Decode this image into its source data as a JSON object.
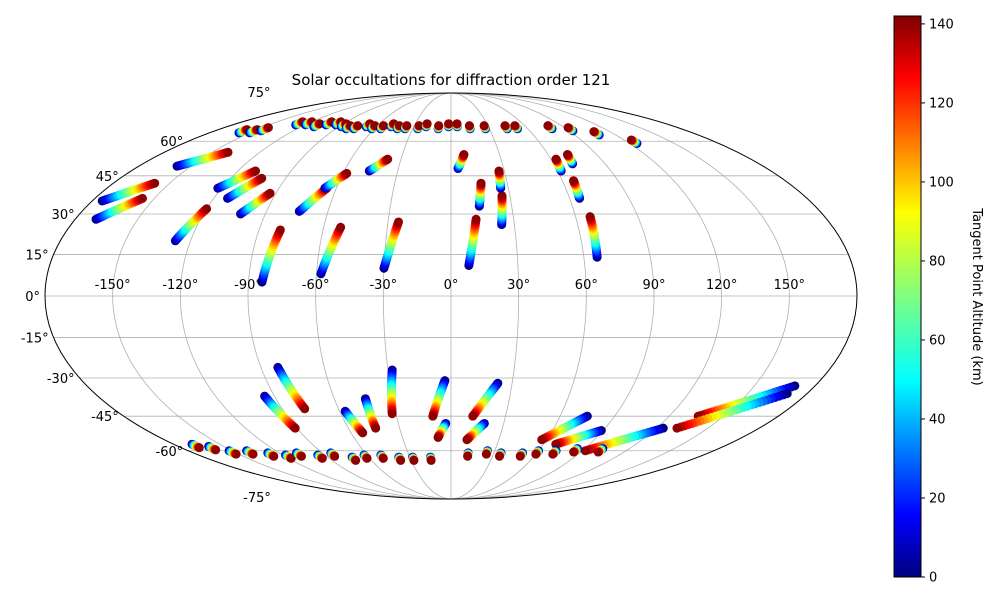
{
  "chart_data": {
    "type": "scatter",
    "projection": "mollweide",
    "title": "Solar occultations for diffraction order 121",
    "xlabel": "",
    "ylabel": "",
    "grid": true,
    "lon_ticks": [
      {
        "value": -150,
        "label": "-150°"
      },
      {
        "value": -120,
        "label": "-120°"
      },
      {
        "value": -90,
        "label": "-90°"
      },
      {
        "value": -60,
        "label": "-60°"
      },
      {
        "value": -30,
        "label": "-30°"
      },
      {
        "value": 0,
        "label": "0°"
      },
      {
        "value": 30,
        "label": "30°"
      },
      {
        "value": 60,
        "label": "60°"
      },
      {
        "value": 90,
        "label": "90°"
      },
      {
        "value": 120,
        "label": "120°"
      },
      {
        "value": 150,
        "label": "150°"
      }
    ],
    "lat_ticks": [
      {
        "value": 75,
        "label": "75°"
      },
      {
        "value": 60,
        "label": "60°"
      },
      {
        "value": 45,
        "label": "45°"
      },
      {
        "value": 30,
        "label": "30°"
      },
      {
        "value": 15,
        "label": "15°"
      },
      {
        "value": 0,
        "label": "0°"
      },
      {
        "value": -15,
        "label": "-15°"
      },
      {
        "value": -30,
        "label": "-30°"
      },
      {
        "value": -45,
        "label": "-45°"
      },
      {
        "value": -60,
        "label": "-60°"
      },
      {
        "value": -75,
        "label": "-75°"
      }
    ],
    "colorbar": {
      "label": "Tangent Point Altitude (km)",
      "range": [
        0,
        142
      ],
      "ticks": [
        {
          "value": 0,
          "label": "0"
        },
        {
          "value": 20,
          "label": "20"
        },
        {
          "value": 40,
          "label": "40"
        },
        {
          "value": 60,
          "label": "60"
        },
        {
          "value": 80,
          "label": "80"
        },
        {
          "value": 100,
          "label": "100"
        },
        {
          "value": 120,
          "label": "120"
        },
        {
          "value": 140,
          "label": "140"
        }
      ]
    },
    "altitude_range_km": [
      0,
      140
    ],
    "occultations": [
      {
        "lon_start": -175,
        "lat_start": 35,
        "lon_end": -158,
        "lat_end": 42
      },
      {
        "lon_start": -170,
        "lat_start": 28,
        "lon_end": -156,
        "lat_end": 36
      },
      {
        "lon_start": -158,
        "lat_start": 49,
        "lon_end": -140,
        "lat_end": 55
      },
      {
        "lon_start": -127,
        "lat_start": 20,
        "lon_end": -120,
        "lat_end": 32
      },
      {
        "lon_start": -122,
        "lat_start": 40,
        "lon_end": -110,
        "lat_end": 47
      },
      {
        "lon_start": -113,
        "lat_start": 36,
        "lon_end": -103,
        "lat_end": 44
      },
      {
        "lon_start": -102,
        "lat_start": 30,
        "lon_end": -93,
        "lat_end": 38
      },
      {
        "lon_start": -84,
        "lat_start": 5,
        "lon_end": -80,
        "lat_end": 24
      },
      {
        "lon_start": -74,
        "lat_start": 31,
        "lon_end": -65,
        "lat_end": 40
      },
      {
        "lon_start": -66,
        "lat_start": 40,
        "lon_end": -58,
        "lat_end": 46
      },
      {
        "lon_start": -58,
        "lat_start": 8,
        "lon_end": -52,
        "lat_end": 25
      },
      {
        "lon_start": -46,
        "lat_start": 47,
        "lon_end": -38,
        "lat_end": 52
      },
      {
        "lon_start": -30,
        "lat_start": 10,
        "lon_end": -25,
        "lat_end": 27
      },
      {
        "lon_start": 8,
        "lat_start": 11,
        "lon_end": 12,
        "lat_end": 28
      },
      {
        "lon_start": 14,
        "lat_start": 33,
        "lon_end": 16,
        "lat_end": 42
      },
      {
        "lon_start": 4,
        "lat_start": 48,
        "lon_end": 8,
        "lat_end": 54
      },
      {
        "lon_start": 24,
        "lat_start": 26,
        "lon_end": 26,
        "lat_end": 37
      },
      {
        "lon_start": 26,
        "lat_start": 40,
        "lon_end": 27,
        "lat_end": 47
      },
      {
        "lon_start": 62,
        "lat_start": 47,
        "lon_end": 63,
        "lat_end": 52
      },
      {
        "lon_start": 65,
        "lat_start": 36,
        "lon_end": 66,
        "lat_end": 43
      },
      {
        "lon_start": 66,
        "lat_start": 14,
        "lon_end": 67,
        "lat_end": 29
      },
      {
        "lon_start": 71,
        "lat_start": 50,
        "lon_end": 72,
        "lat_end": 54
      },
      {
        "lon_start": -82,
        "lat_start": -26,
        "lon_end": -78,
        "lat_end": -42
      },
      {
        "lon_start": -95,
        "lat_start": -37,
        "lon_end": -91,
        "lat_end": -50
      },
      {
        "lon_start": -57,
        "lat_start": -43,
        "lon_end": -53,
        "lat_end": -52
      },
      {
        "lon_start": -44,
        "lat_start": -38,
        "lon_end": -44,
        "lat_end": -50
      },
      {
        "lon_start": -28,
        "lat_start": -27,
        "lon_end": -32,
        "lat_end": -44
      },
      {
        "lon_start": -3,
        "lat_start": -31,
        "lon_end": -10,
        "lat_end": -45
      },
      {
        "lon_start": -3,
        "lat_start": -48,
        "lon_end": -8,
        "lat_end": -54
      },
      {
        "lon_start": 23,
        "lat_start": -32,
        "lon_end": 12,
        "lat_end": -45
      },
      {
        "lon_start": 19,
        "lat_start": -48,
        "lon_end": 10,
        "lat_end": -55
      },
      {
        "lon_start": 75,
        "lat_start": -45,
        "lon_end": 57,
        "lat_end": -55
      },
      {
        "lon_start": 89,
        "lat_start": -51,
        "lon_end": 68,
        "lat_end": -57
      },
      {
        "lon_start": 124,
        "lat_start": -50,
        "lon_end": 92,
        "lat_end": -60
      },
      {
        "lon_start": 170,
        "lat_start": -33,
        "lon_end": 136,
        "lat_end": -45
      },
      {
        "lon_start": 170,
        "lat_start": -36,
        "lon_end": 132,
        "lat_end": -50
      }
    ],
    "near_pole_points": [
      {
        "lon": -158,
        "lat": 64
      },
      {
        "lon": -150,
        "lat": 64
      },
      {
        "lon": -145,
        "lat": 65
      },
      {
        "lon": -128,
        "lat": 68
      },
      {
        "lon": -120,
        "lat": 68
      },
      {
        "lon": -110,
        "lat": 67
      },
      {
        "lon": -103,
        "lat": 68
      },
      {
        "lon": -95,
        "lat": 68
      },
      {
        "lon": -88,
        "lat": 67
      },
      {
        "lon": -82,
        "lat": 66
      },
      {
        "lon": -76,
        "lat": 66
      },
      {
        "lon": -68,
        "lat": 67
      },
      {
        "lon": -62,
        "lat": 66
      },
      {
        "lon": -55,
        "lat": 66
      },
      {
        "lon": -48,
        "lat": 67
      },
      {
        "lon": -42,
        "lat": 66
      },
      {
        "lon": -36,
        "lat": 66
      },
      {
        "lon": -26,
        "lat": 66
      },
      {
        "lon": -20,
        "lat": 67
      },
      {
        "lon": -10,
        "lat": 66
      },
      {
        "lon": -2,
        "lat": 67
      },
      {
        "lon": 5,
        "lat": 67
      },
      {
        "lon": 15,
        "lat": 66
      },
      {
        "lon": 27,
        "lat": 66
      },
      {
        "lon": 44,
        "lat": 66
      },
      {
        "lon": 52,
        "lat": 66
      },
      {
        "lon": 79,
        "lat": 66
      },
      {
        "lon": 93,
        "lat": 65
      },
      {
        "lon": 108,
        "lat": 63
      },
      {
        "lon": 125,
        "lat": 59
      },
      {
        "lon": -168,
        "lat": -57
      },
      {
        "lon": -160,
        "lat": -58
      },
      {
        "lon": -152,
        "lat": -60
      },
      {
        "lon": -140,
        "lat": -60
      },
      {
        "lon": -128,
        "lat": -61
      },
      {
        "lon": -118,
        "lat": -62
      },
      {
        "lon": -108,
        "lat": -61
      },
      {
        "lon": -95,
        "lat": -62
      },
      {
        "lon": -84,
        "lat": -61
      },
      {
        "lon": -72,
        "lat": -63
      },
      {
        "lon": -62,
        "lat": -62
      },
      {
        "lon": -50,
        "lat": -62
      },
      {
        "lon": -38,
        "lat": -63
      },
      {
        "lon": -28,
        "lat": -63
      },
      {
        "lon": -15,
        "lat": -63
      },
      {
        "lon": 12,
        "lat": -61
      },
      {
        "lon": 25,
        "lat": -60
      },
      {
        "lon": 35,
        "lat": -61
      },
      {
        "lon": 50,
        "lat": -61
      },
      {
        "lon": 60,
        "lat": -60
      },
      {
        "lon": 72,
        "lat": -60
      },
      {
        "lon": 85,
        "lat": -59
      },
      {
        "lon": 102,
        "lat": -59
      }
    ]
  }
}
